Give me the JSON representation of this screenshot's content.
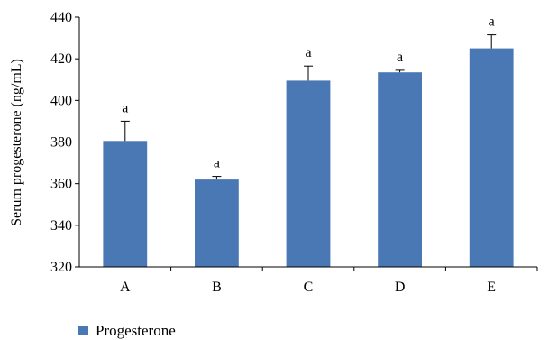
{
  "chart_data": {
    "type": "bar",
    "title": "",
    "xlabel": "",
    "ylabel": "Serum progesterone (ng/mL)",
    "ylim": [
      320,
      440
    ],
    "yticks": [
      320,
      340,
      360,
      380,
      400,
      420,
      440
    ],
    "grid": false,
    "legend_position": "bottom-left",
    "categories": [
      "A",
      "B",
      "C",
      "D",
      "E"
    ],
    "series": [
      {
        "name": "Progesterone",
        "color": "#4a78b5",
        "values": [
          380.5,
          362,
          409.5,
          413.5,
          425
        ],
        "errors": [
          9.5,
          1.5,
          7,
          1,
          6.5
        ],
        "labels": [
          "a",
          "a",
          "a",
          "a",
          "a"
        ]
      }
    ]
  }
}
